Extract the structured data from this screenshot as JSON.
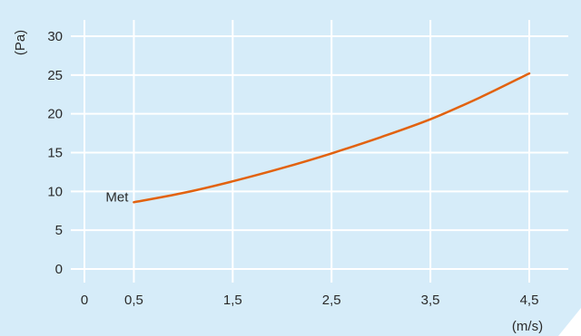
{
  "chart_data": {
    "type": "line",
    "title": "",
    "xlabel": "(m/s)",
    "ylabel": "(Pa)",
    "xlim": [
      0,
      4.5
    ],
    "ylim": [
      0,
      30
    ],
    "x_ticks": [
      0,
      0.5,
      1.5,
      2.5,
      3.5,
      4.5
    ],
    "x_tick_labels": [
      "0",
      "0,5",
      "1,5",
      "2,5",
      "3,5",
      "4,5"
    ],
    "y_ticks": [
      0,
      5,
      10,
      15,
      20,
      25,
      30
    ],
    "y_tick_labels": [
      "0",
      "5",
      "10",
      "15",
      "20",
      "25",
      "30"
    ],
    "grid": true,
    "series": [
      {
        "name": "Met",
        "x": [
          0.5,
          1.0,
          1.5,
          2.0,
          2.5,
          3.0,
          3.5,
          4.0,
          4.5
        ],
        "y": [
          8.6,
          9.8,
          11.3,
          13.0,
          14.9,
          17.0,
          19.3,
          22.1,
          25.2
        ]
      }
    ]
  },
  "colors": {
    "panel_background": "#d6ecf9",
    "grid": "#ffffff",
    "series_line": "#e2620f",
    "text": "#2a2a2a"
  }
}
